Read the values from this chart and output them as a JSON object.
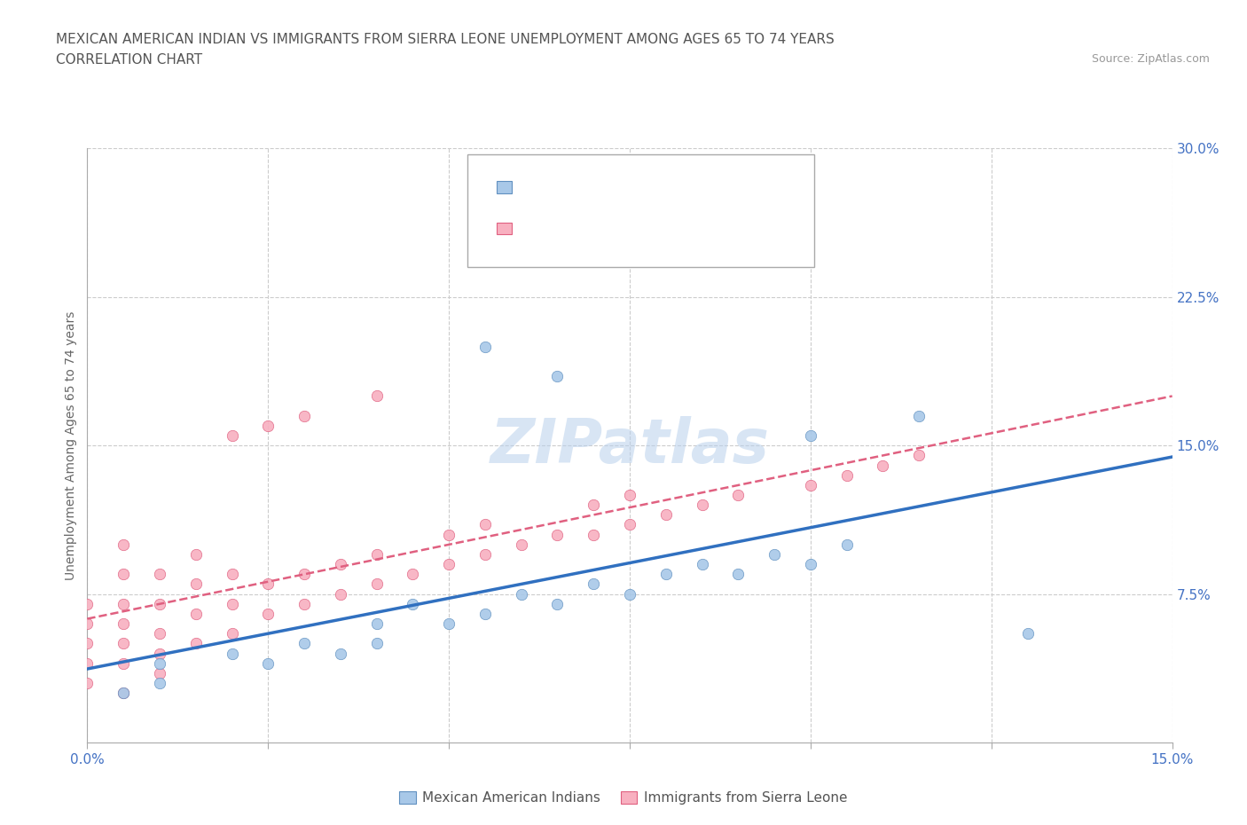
{
  "title_line1": "MEXICAN AMERICAN INDIAN VS IMMIGRANTS FROM SIERRA LEONE UNEMPLOYMENT AMONG AGES 65 TO 74 YEARS",
  "title_line2": "CORRELATION CHART",
  "source_text": "Source: ZipAtlas.com",
  "ylabel": "Unemployment Among Ages 65 to 74 years",
  "xlim": [
    0.0,
    0.15
  ],
  "ylim": [
    0.0,
    0.3
  ],
  "xticks": [
    0.0,
    0.025,
    0.05,
    0.075,
    0.1,
    0.125,
    0.15
  ],
  "xticklabels": [
    "0.0%",
    "",
    "",
    "",
    "",
    "",
    "15.0%"
  ],
  "ytick_positions": [
    0.075,
    0.15,
    0.225,
    0.3
  ],
  "yticklabels": [
    "7.5%",
    "15.0%",
    "22.5%",
    "30.0%"
  ],
  "watermark": "ZIPatlas",
  "series1_color": "#a8c8e8",
  "series2_color": "#f8b0c0",
  "series1_edge": "#6090c0",
  "series2_edge": "#e06080",
  "line1_color": "#3070c0",
  "line2_color": "#e06080",
  "series1_label": "Mexican American Indians",
  "series2_label": "Immigrants from Sierra Leone",
  "series1_x": [
    0.005,
    0.01,
    0.01,
    0.02,
    0.025,
    0.03,
    0.035,
    0.04,
    0.04,
    0.045,
    0.05,
    0.055,
    0.06,
    0.065,
    0.07,
    0.075,
    0.08,
    0.085,
    0.09,
    0.095,
    0.1,
    0.105,
    0.055,
    0.065,
    0.1,
    0.115,
    0.13
  ],
  "series1_y": [
    0.025,
    0.03,
    0.04,
    0.045,
    0.04,
    0.05,
    0.045,
    0.05,
    0.06,
    0.07,
    0.06,
    0.065,
    0.075,
    0.07,
    0.08,
    0.075,
    0.085,
    0.09,
    0.085,
    0.095,
    0.09,
    0.1,
    0.2,
    0.185,
    0.155,
    0.165,
    0.055
  ],
  "series2_x": [
    0.0,
    0.0,
    0.0,
    0.0,
    0.0,
    0.005,
    0.005,
    0.005,
    0.005,
    0.005,
    0.005,
    0.005,
    0.01,
    0.01,
    0.01,
    0.01,
    0.01,
    0.015,
    0.015,
    0.015,
    0.015,
    0.02,
    0.02,
    0.02,
    0.025,
    0.025,
    0.03,
    0.03,
    0.035,
    0.035,
    0.04,
    0.04,
    0.045,
    0.05,
    0.05,
    0.055,
    0.055,
    0.06,
    0.065,
    0.07,
    0.07,
    0.075,
    0.075,
    0.08,
    0.085,
    0.09,
    0.1,
    0.105,
    0.11,
    0.115,
    0.02,
    0.025,
    0.03,
    0.04
  ],
  "series2_y": [
    0.03,
    0.04,
    0.05,
    0.06,
    0.07,
    0.025,
    0.04,
    0.05,
    0.06,
    0.07,
    0.085,
    0.1,
    0.035,
    0.045,
    0.055,
    0.07,
    0.085,
    0.05,
    0.065,
    0.08,
    0.095,
    0.055,
    0.07,
    0.085,
    0.065,
    0.08,
    0.07,
    0.085,
    0.075,
    0.09,
    0.08,
    0.095,
    0.085,
    0.09,
    0.105,
    0.095,
    0.11,
    0.1,
    0.105,
    0.105,
    0.12,
    0.11,
    0.125,
    0.115,
    0.12,
    0.125,
    0.13,
    0.135,
    0.14,
    0.145,
    0.155,
    0.16,
    0.165,
    0.175
  ],
  "title_fontsize": 11,
  "subtitle_fontsize": 11,
  "axis_label_fontsize": 10,
  "tick_fontsize": 11,
  "legend_fontsize": 13,
  "watermark_fontsize": 50,
  "background_color": "#ffffff",
  "grid_color": "#cccccc"
}
